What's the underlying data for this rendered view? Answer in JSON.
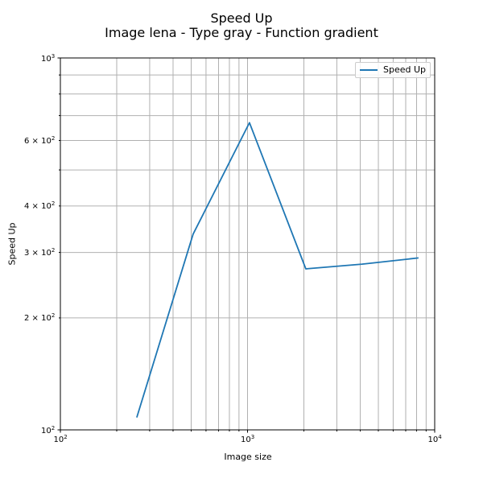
{
  "chart_data": {
    "type": "line",
    "title": "Speed Up",
    "subtitle": "Image lena - Type gray - Function gradient",
    "xlabel": "Image size",
    "ylabel": "Speed Up",
    "xscale": "log",
    "yscale": "log",
    "xlim": [
      100,
      10000
    ],
    "ylim": [
      100,
      1000
    ],
    "grid": true,
    "legend_position": "top-right",
    "x_tick_labels": [
      {
        "value": 100,
        "base": "10",
        "exp": "2"
      },
      {
        "value": 1000,
        "base": "10",
        "exp": "3"
      },
      {
        "value": 10000,
        "base": "10",
        "exp": "4"
      }
    ],
    "y_tick_labels": [
      {
        "value": 100,
        "base": "10",
        "exp": "2"
      },
      {
        "value": 200,
        "base": "2 × 10",
        "exp": "2"
      },
      {
        "value": 300,
        "base": "3 × 10",
        "exp": "2"
      },
      {
        "value": 400,
        "base": "4 × 10",
        "exp": "2"
      },
      {
        "value": 600,
        "base": "6 × 10",
        "exp": "2"
      },
      {
        "value": 1000,
        "base": "10",
        "exp": "3"
      }
    ],
    "series": [
      {
        "name": "Speed Up",
        "color": "#1f77b4",
        "x": [
          256,
          512,
          1024,
          2048,
          4096,
          8192
        ],
        "y": [
          108,
          336,
          670,
          271,
          279,
          290
        ]
      }
    ]
  }
}
